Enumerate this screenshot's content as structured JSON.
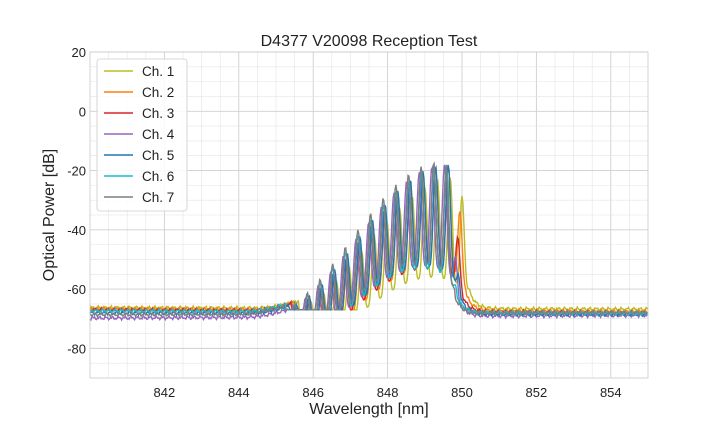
{
  "chart_data": {
    "type": "line",
    "title": "D4377 V20098 Reception Test",
    "xlabel": "Wavelength [nm]",
    "ylabel": "Optical Power [dB]",
    "xlim": [
      840.0,
      855.0
    ],
    "ylim": [
      -90,
      20
    ],
    "xticks": [
      842,
      844,
      846,
      848,
      850,
      852,
      854
    ],
    "yticks": [
      -80,
      -60,
      -40,
      -20,
      0,
      20
    ],
    "x_minor_step": 0.5,
    "y_minor_step": 5,
    "grid": true,
    "legend_position": "top-left",
    "series": [
      {
        "name": "Ch. 1",
        "color": "#bcbd22",
        "base_left": -66.3,
        "base_right": -66.8,
        "offset": 0.2,
        "peak": -22
      },
      {
        "name": "Ch. 2",
        "color": "#ff7f0e",
        "base_left": -66.6,
        "base_right": -67.6,
        "offset": 0.1,
        "peak": -18
      },
      {
        "name": "Ch. 3",
        "color": "#d62728",
        "base_left": -67.0,
        "base_right": -68.0,
        "offset": 0.0,
        "peak": -19
      },
      {
        "name": "Ch. 4",
        "color": "#9467bd",
        "base_left": -69.8,
        "base_right": -68.8,
        "offset": -0.1,
        "peak": -18
      },
      {
        "name": "Ch. 5",
        "color": "#1f77b4",
        "base_left": -68.0,
        "base_right": -68.5,
        "offset": -0.05,
        "peak": -18
      },
      {
        "name": "Ch. 6",
        "color": "#17becf",
        "base_left": -67.3,
        "base_right": -68.2,
        "offset": -0.15,
        "peak": -19
      },
      {
        "name": "Ch. 7",
        "color": "#7f7f7f",
        "base_left": -68.6,
        "base_right": -68.0,
        "offset": -0.2,
        "peak": -17
      }
    ]
  }
}
